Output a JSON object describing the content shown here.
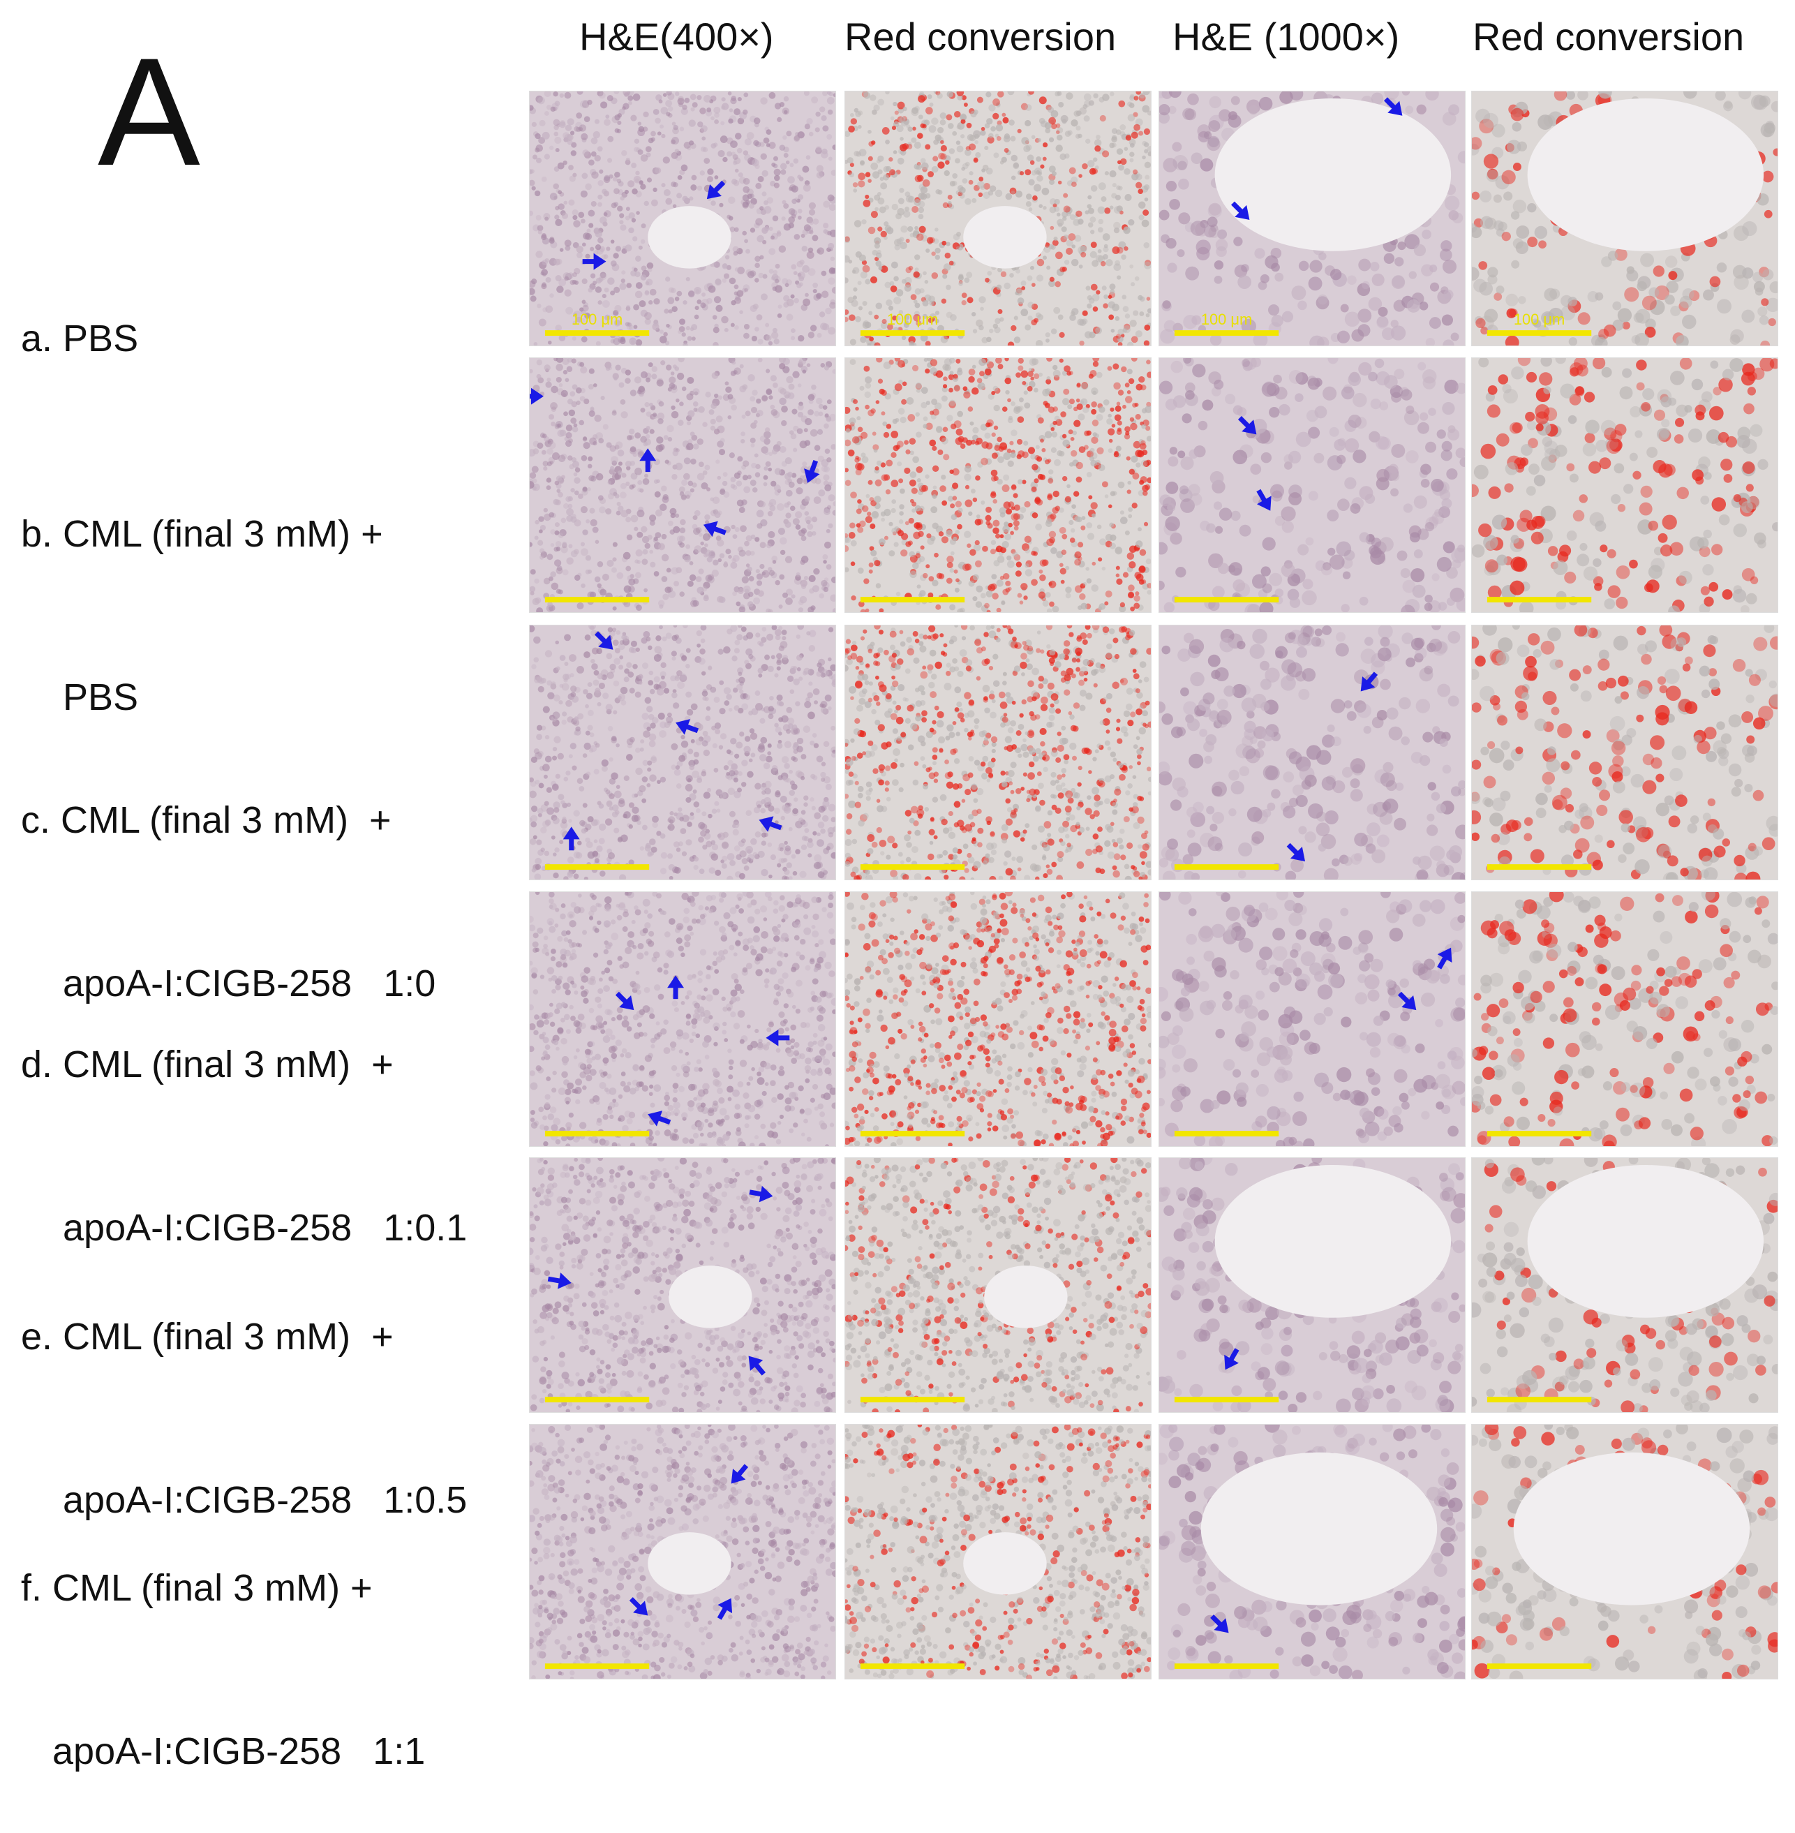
{
  "figure": {
    "panel_label": "A",
    "columns": [
      {
        "label": "H&E(400×)",
        "kind": "he"
      },
      {
        "label": "Red conversion",
        "kind": "red"
      },
      {
        "label": "H&E (1000×)",
        "kind": "he"
      },
      {
        "label": "Red conversion",
        "kind": "red"
      }
    ],
    "rows": [
      {
        "lines": [
          "a. PBS"
        ]
      },
      {
        "lines": [
          "b. CML (final 3 mM) +",
          "    PBS"
        ]
      },
      {
        "lines": [
          "c. CML (final 3 mM)  +",
          "    apoA-I:CIGB-258   1:0"
        ]
      },
      {
        "lines": [
          "d. CML (final 3 mM)  +",
          "    apoA-I:CIGB-258   1:0.1"
        ]
      },
      {
        "lines": [
          "e. CML (final 3 mM)  +",
          "    apoA-I:CIGB-258   1:0.5"
        ]
      },
      {
        "lines": [
          "f. CML (final 3 mM) +",
          "   apoA-I:CIGB-258   1:1"
        ]
      }
    ],
    "scale_bar_text": "100 μm",
    "colors": {
      "arrow": "#1a1ae6",
      "scale_bar": "#f2e600",
      "he_background": "#d9cdd6",
      "red_background": "#ddd8d6",
      "red_dots": "#e8281e"
    }
  }
}
